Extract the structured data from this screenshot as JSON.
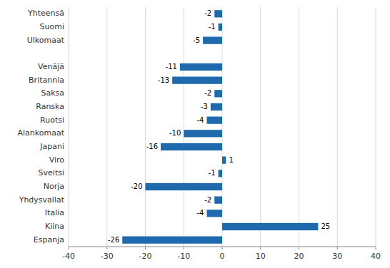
{
  "chart_data": {
    "type": "bar",
    "orientation": "horizontal",
    "categories": [
      "Espanja",
      "Kiina",
      "Italia",
      "Yhdysvallat",
      "Norja",
      "Sveitsi",
      "Viro",
      "Japani",
      "Alankomaat",
      "Ruotsi",
      "Ranska",
      "Saksa",
      "Britannia",
      "Venäjä",
      null,
      "Ulkomaat",
      "Suomi",
      "Yhteensä"
    ],
    "values": [
      -26,
      25,
      -4,
      -2,
      -20,
      -1,
      1,
      -16,
      -10,
      -4,
      -3,
      -2,
      -13,
      -11,
      null,
      -5,
      -1,
      -2
    ],
    "color": "#1f6aad",
    "xlim": [
      -40,
      40
    ],
    "xticks": [
      -40,
      -30,
      -20,
      -10,
      0,
      10,
      20,
      30,
      40
    ],
    "grid": true,
    "data_labels": true
  }
}
